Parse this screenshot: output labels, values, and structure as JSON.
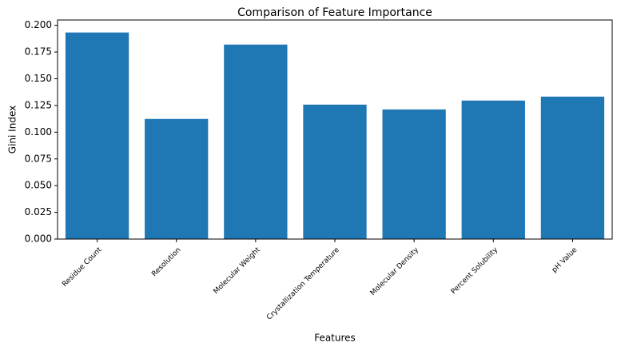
{
  "chart_data": {
    "type": "bar",
    "title": "Comparison of Feature Importance",
    "x_label": "Features",
    "y_label": "Gini Index",
    "categories": [
      "Residue Count",
      "Resolution",
      "Molecular Weight",
      "Crystallization Temperature",
      "Molecular Density",
      "Percent Solubility",
      "pH Value"
    ],
    "values": [
      0.1933,
      0.1124,
      0.182,
      0.1258,
      0.1213,
      0.1296,
      0.1333
    ],
    "color": "#1f77b4",
    "ylim": [
      0,
      0.205
    ],
    "yticks": [
      {
        "value": 0,
        "label": "0.000"
      },
      {
        "value": 0.025,
        "label": "0.025"
      },
      {
        "value": 0.05,
        "label": "0.050"
      },
      {
        "value": 0.075,
        "label": "0.075"
      },
      {
        "value": 0.1,
        "label": "0.100"
      },
      {
        "value": 0.125,
        "label": "0.125"
      },
      {
        "value": 0.15,
        "label": "0.150"
      },
      {
        "value": 0.175,
        "label": "0.175"
      },
      {
        "value": 0.2,
        "label": "0.200"
      }
    ],
    "grid": false
  }
}
